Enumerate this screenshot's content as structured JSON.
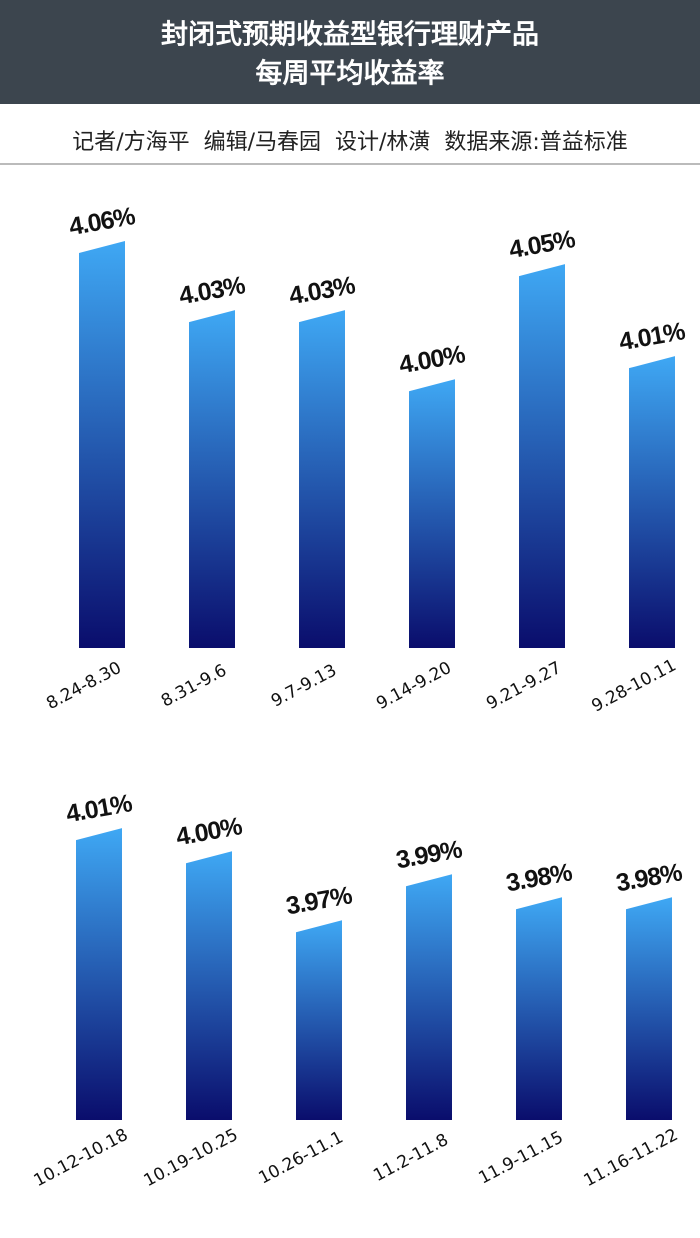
{
  "header": {
    "title": [
      "封闭式预期收益型银行理财产品",
      "每周平均收益率"
    ],
    "byline": "记者/方海平  编辑/马春园  设计/林潢  数据来源:普益标准"
  },
  "chart_data": [
    {
      "type": "bar",
      "categories": [
        "8.24-8.30",
        "8.31-9.6",
        "9.7-9.13",
        "9.14-9.20",
        "9.21-9.27",
        "9.28-10.11"
      ],
      "values": [
        4.06,
        4.03,
        4.03,
        4.0,
        4.05,
        4.01
      ],
      "value_labels": [
        "4.06%",
        "4.03%",
        "4.03%",
        "4.00%",
        "4.05%",
        "4.01%"
      ],
      "ylim": [
        3.885,
        4.08
      ],
      "gradient": [
        "#3fa8f4",
        "#0a0d6c"
      ]
    },
    {
      "type": "bar",
      "categories": [
        "10.12-10.18",
        "10.19-10.25",
        "10.26-11.1",
        "11.2-11.8",
        "11.9-11.15",
        "11.16-11.22"
      ],
      "values": [
        4.01,
        4.0,
        3.97,
        3.99,
        3.98,
        3.98
      ],
      "value_labels": [
        "4.01%",
        "4.00%",
        "3.97%",
        "3.99%",
        "3.98%",
        "3.98%"
      ],
      "ylim": [
        3.885,
        4.08
      ],
      "gradient": [
        "#3fa8f4",
        "#0a0d6c"
      ]
    }
  ]
}
